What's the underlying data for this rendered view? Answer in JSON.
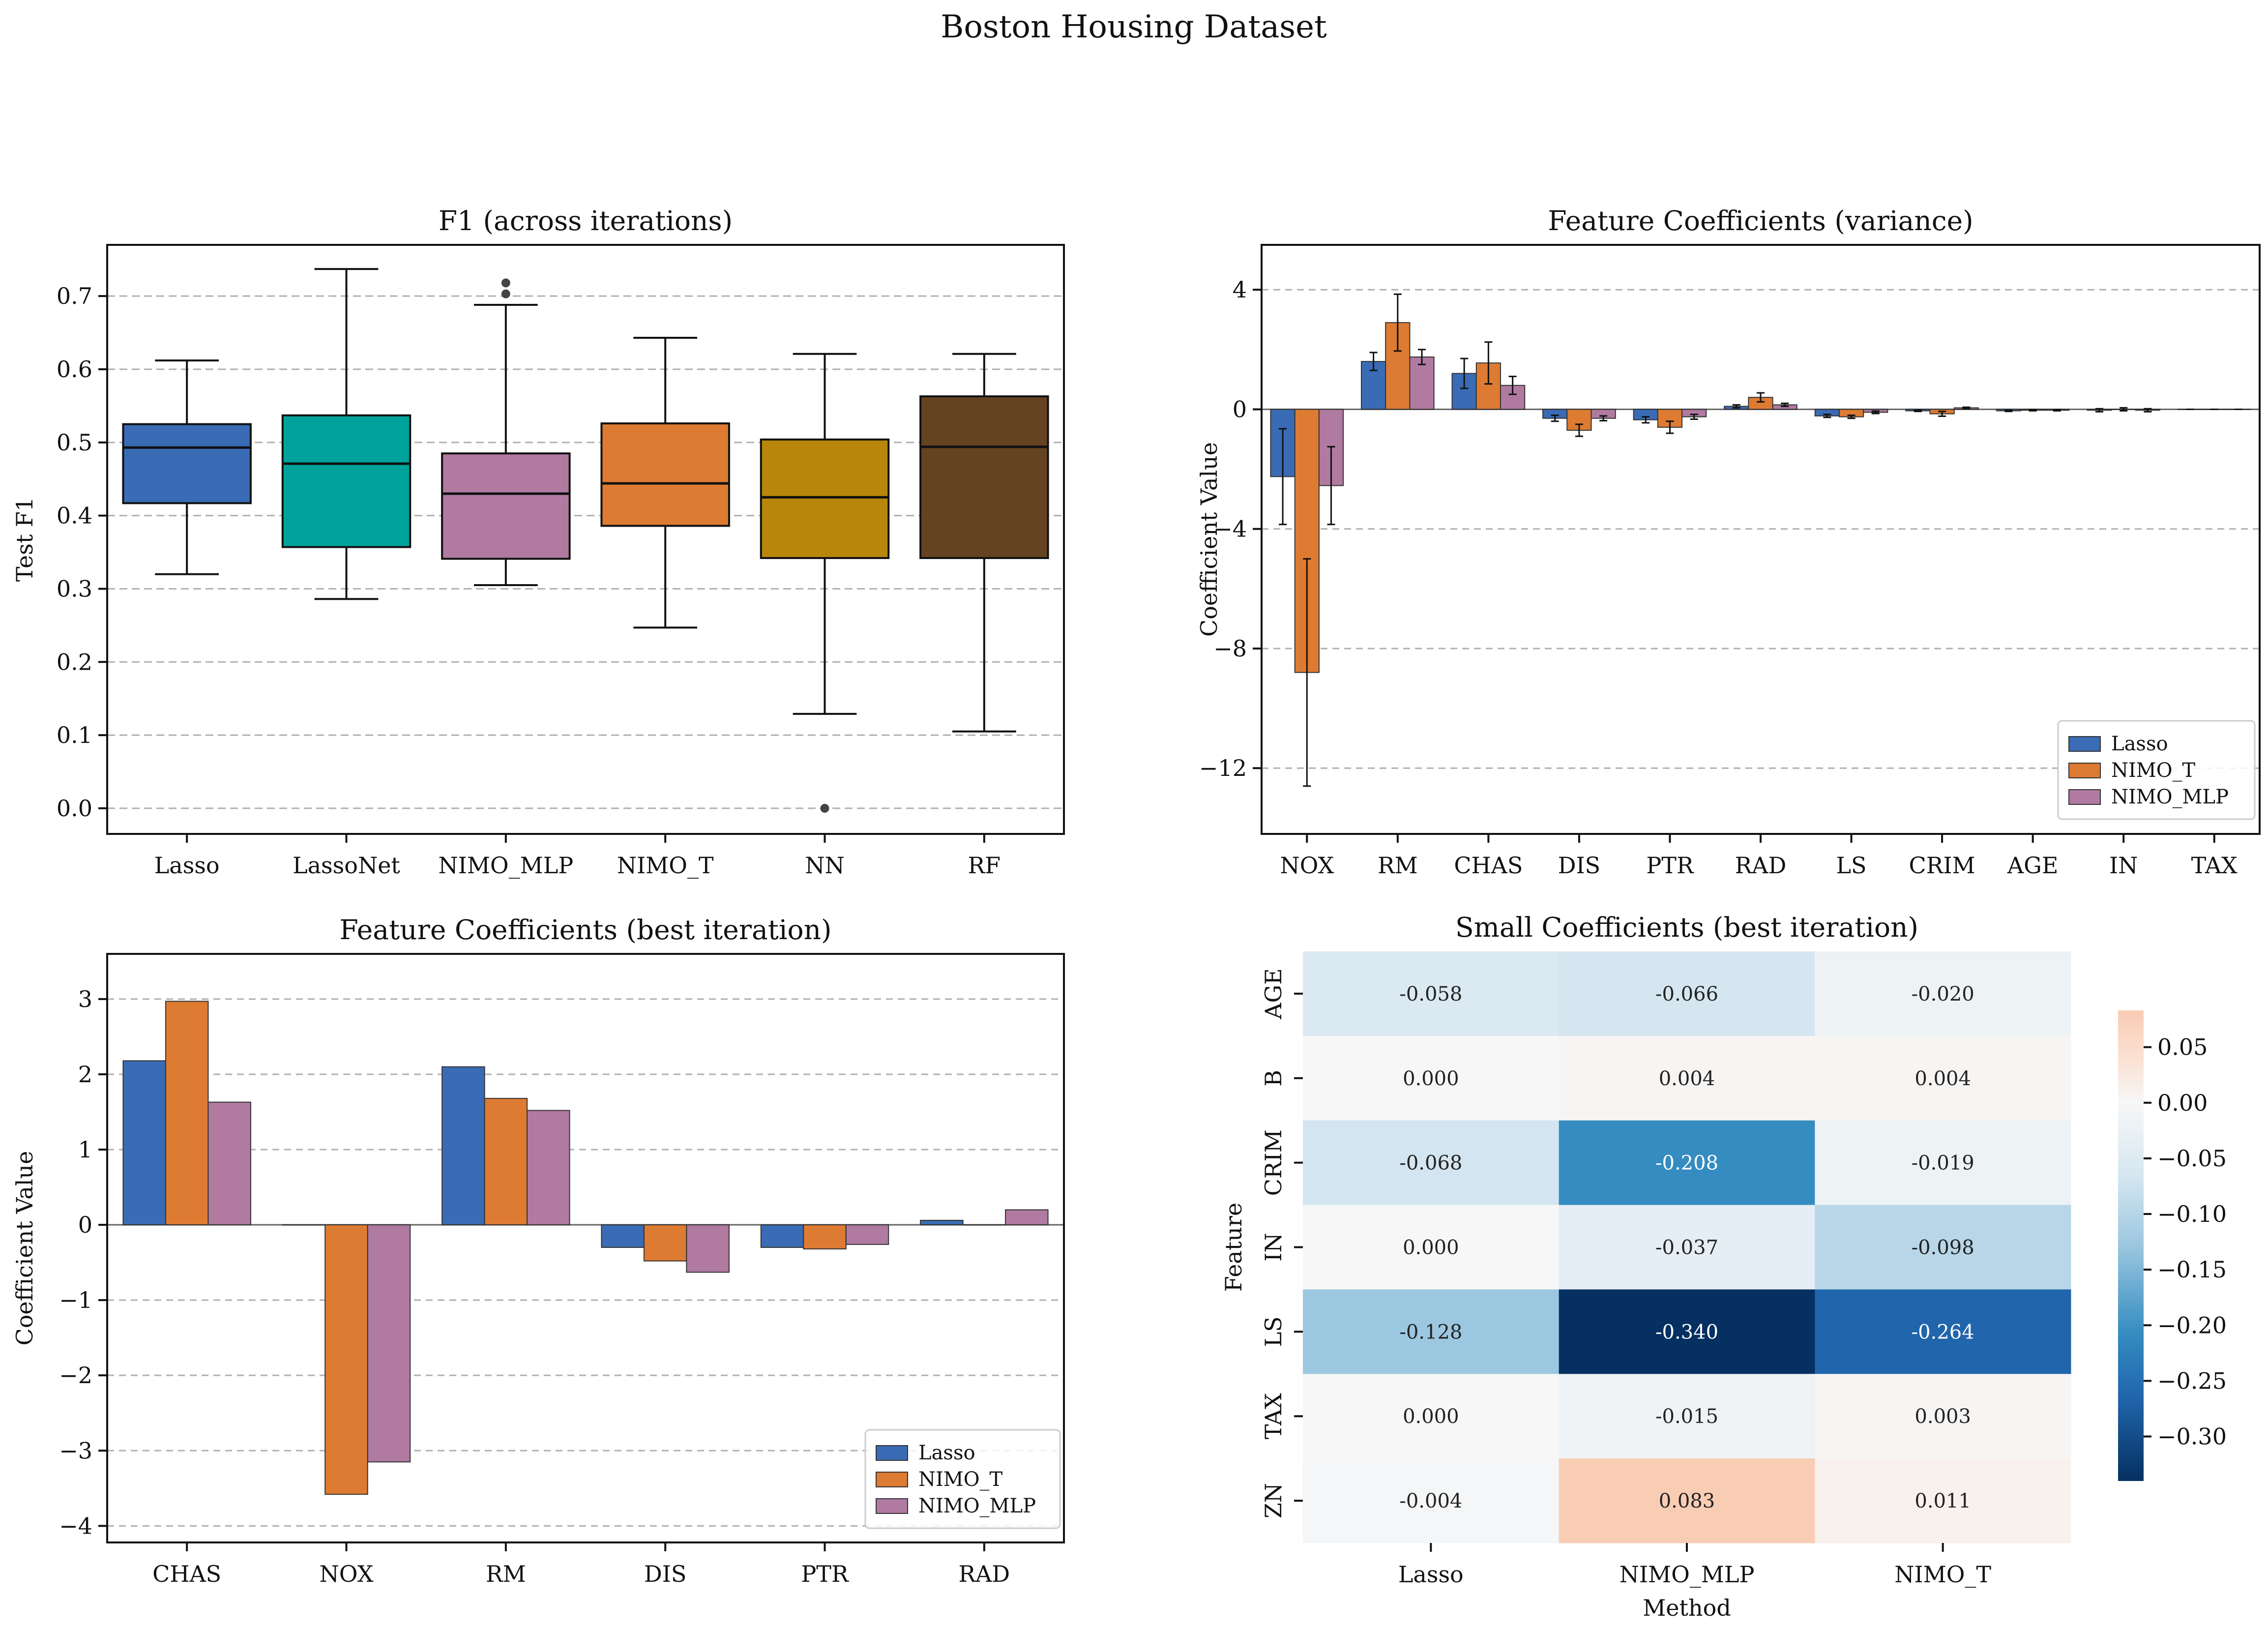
{
  "suptitle": "Boston Housing Dataset",
  "chart_data": [
    {
      "type": "box",
      "title": "F1 (across iterations)",
      "ylabel": "Test F1",
      "xlabel": "",
      "ylim": [
        -0.035,
        0.77
      ],
      "yticks": [
        0.0,
        0.1,
        0.2,
        0.3,
        0.4,
        0.5,
        0.6,
        0.7
      ],
      "grid": "y-dashed",
      "boxes": [
        {
          "name": "Lasso",
          "color": "#3a6bb5",
          "whislo": 0.32,
          "q1": 0.417,
          "med": 0.493,
          "q3": 0.525,
          "whishi": 0.612,
          "fliers": []
        },
        {
          "name": "LassoNet",
          "color": "#00a39b",
          "whislo": 0.286,
          "q1": 0.357,
          "med": 0.471,
          "q3": 0.537,
          "whishi": 0.737,
          "fliers": []
        },
        {
          "name": "NIMO_MLP",
          "color": "#b07aa1",
          "whislo": 0.305,
          "q1": 0.341,
          "med": 0.43,
          "q3": 0.485,
          "whishi": 0.688,
          "fliers": [
            0.703,
            0.718
          ]
        },
        {
          "name": "NIMO_T",
          "color": "#dd7b32",
          "whislo": 0.247,
          "q1": 0.386,
          "med": 0.444,
          "q3": 0.526,
          "whishi": 0.643,
          "fliers": []
        },
        {
          "name": "NN",
          "color": "#b8860b",
          "whislo": 0.129,
          "q1": 0.342,
          "med": 0.425,
          "q3": 0.504,
          "whishi": 0.621,
          "fliers": [
            0.0
          ]
        },
        {
          "name": "RF",
          "color": "#654321",
          "whislo": 0.105,
          "q1": 0.342,
          "med": 0.494,
          "q3": 0.563,
          "whishi": 0.621,
          "fliers": []
        }
      ]
    },
    {
      "type": "bar",
      "title": "Feature Coefficients (variance)",
      "ylabel": "Coefficient Value",
      "xlabel": "",
      "ylim": [
        -14.2,
        5.5
      ],
      "yticks": [
        4,
        0,
        -4,
        -8,
        -12
      ],
      "ytick_labels": [
        "4",
        "0",
        "−4",
        "−8",
        "−12"
      ],
      "grid": "y-dashed",
      "legend": "lower-right",
      "categories": [
        "NOX",
        "RM",
        "CHAS",
        "DIS",
        "PTR",
        "RAD",
        "LS",
        "CRIM",
        "AGE",
        "IN",
        "TAX"
      ],
      "series": [
        {
          "name": "Lasso",
          "color": "#3a6bb5",
          "values": [
            -2.25,
            1.6,
            1.2,
            -0.3,
            -0.35,
            0.1,
            -0.22,
            -0.05,
            -0.05,
            -0.03,
            0.0
          ],
          "errors": [
            1.6,
            0.3,
            0.5,
            0.1,
            0.1,
            0.05,
            0.05,
            0.02,
            0.02,
            0.05,
            0.0
          ]
        },
        {
          "name": "NIMO_T",
          "color": "#dd7b32",
          "values": [
            -8.8,
            2.9,
            1.55,
            -0.7,
            -0.6,
            0.4,
            -0.25,
            -0.15,
            -0.03,
            0.0,
            0.0
          ],
          "errors": [
            3.8,
            0.95,
            0.7,
            0.2,
            0.2,
            0.15,
            0.05,
            0.08,
            0.02,
            0.05,
            0.0
          ]
        },
        {
          "name": "NIMO_MLP",
          "color": "#b07aa1",
          "values": [
            -2.55,
            1.75,
            0.8,
            -0.3,
            -0.25,
            0.15,
            -0.1,
            0.05,
            -0.03,
            -0.03,
            0.0
          ],
          "errors": [
            1.3,
            0.25,
            0.3,
            0.08,
            0.08,
            0.05,
            0.04,
            0.02,
            0.02,
            0.05,
            0.0
          ]
        }
      ]
    },
    {
      "type": "bar",
      "title": "Feature Coefficients (best iteration)",
      "ylabel": "Coefficient Value",
      "xlabel": "",
      "ylim": [
        -4.22,
        3.6
      ],
      "yticks": [
        3,
        2,
        1,
        0,
        -1,
        -2,
        -3,
        -4
      ],
      "ytick_labels": [
        "3",
        "2",
        "1",
        "0",
        "−1",
        "−2",
        "−3",
        "−4"
      ],
      "grid": "y-dashed",
      "legend": "lower-right",
      "categories": [
        "CHAS",
        "NOX",
        "RM",
        "DIS",
        "PTR",
        "RAD"
      ],
      "series": [
        {
          "name": "Lasso",
          "color": "#3a6bb5",
          "values": [
            2.18,
            0.0,
            2.1,
            -0.3,
            -0.3,
            0.06
          ]
        },
        {
          "name": "NIMO_T",
          "color": "#dd7b32",
          "values": [
            2.97,
            -3.58,
            1.68,
            -0.48,
            -0.32,
            0.0
          ]
        },
        {
          "name": "NIMO_MLP",
          "color": "#b07aa1",
          "values": [
            1.63,
            -3.15,
            1.52,
            -0.63,
            -0.26,
            0.2
          ]
        }
      ]
    },
    {
      "type": "heatmap",
      "title": "Small Coefficients (best iteration)",
      "xlabel": "Method",
      "ylabel": "Feature",
      "x": [
        "Lasso",
        "NIMO_MLP",
        "NIMO_T"
      ],
      "y": [
        "AGE",
        "B",
        "CRIM",
        "IN",
        "LS",
        "TAX",
        "ZN"
      ],
      "values": [
        [
          -0.058,
          -0.066,
          -0.02
        ],
        [
          0.0,
          0.004,
          0.004
        ],
        [
          -0.068,
          -0.208,
          -0.019
        ],
        [
          0.0,
          -0.037,
          -0.098
        ],
        [
          -0.128,
          -0.34,
          -0.264
        ],
        [
          0.0,
          -0.015,
          0.003
        ],
        [
          -0.004,
          0.083,
          0.011
        ]
      ],
      "cell_labels": [
        [
          "-0.058",
          "-0.066",
          "-0.020"
        ],
        [
          "0.000",
          "0.004",
          "0.004"
        ],
        [
          "-0.068",
          "-0.208",
          "-0.019"
        ],
        [
          "0.000",
          "-0.037",
          "-0.098"
        ],
        [
          "-0.128",
          "-0.340",
          "-0.264"
        ],
        [
          "0.000",
          "-0.015",
          "0.003"
        ],
        [
          "-0.004",
          "0.083",
          "0.011"
        ]
      ],
      "colormap": "RdBu_r",
      "vmin": -0.34,
      "vmax": 0.083,
      "colorbar_ticks": [
        0.05,
        0.0,
        -0.05,
        -0.1,
        -0.15,
        -0.2,
        -0.25,
        -0.3
      ],
      "colorbar_tick_labels": [
        "0.05",
        "0.00",
        "−0.05",
        "−0.10",
        "−0.15",
        "−0.20",
        "−0.25",
        "−0.30"
      ]
    }
  ]
}
